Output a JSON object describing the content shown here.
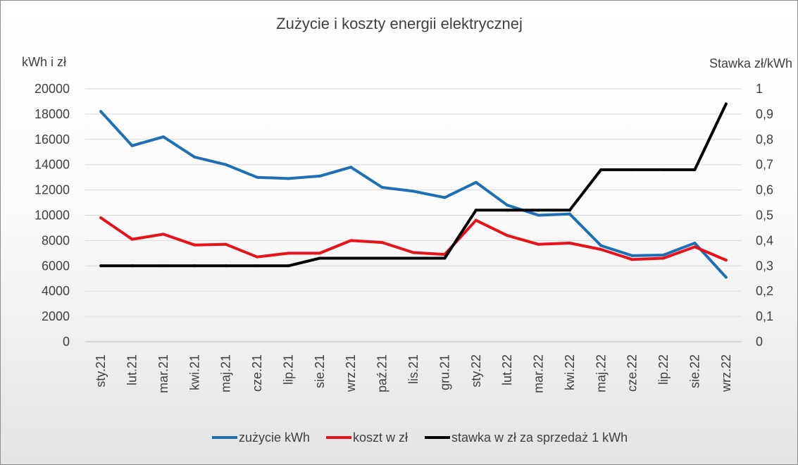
{
  "chart_data": {
    "type": "line",
    "title": "Zużycie i koszty energii elektrycznej",
    "ylabel_left": "kWh i zł",
    "ylabel_right": "Stawka zł/kWh",
    "categories": [
      "sty.21",
      "lut.21",
      "mar.21",
      "kwi.21",
      "maj.21",
      "cze.21",
      "lip.21",
      "sie.21",
      "wrz.21",
      "paź.21",
      "lis.21",
      "gru.21",
      "sty.22",
      "lut.22",
      "mar.22",
      "kwi.22",
      "maj.22",
      "cze.22",
      "lip.22",
      "sie.22",
      "wrz.22"
    ],
    "ylim_left": [
      0,
      20000
    ],
    "ylim_right": [
      0,
      1
    ],
    "y_ticks_left": [
      "0",
      "2000",
      "4000",
      "6000",
      "8000",
      "10000",
      "12000",
      "14000",
      "16000",
      "18000",
      "20000"
    ],
    "y_ticks_right": [
      "0",
      "0,1",
      "0,2",
      "0,3",
      "0,4",
      "0,5",
      "0,6",
      "0,7",
      "0,8",
      "0,9",
      "1"
    ],
    "grid": "horizontal",
    "legend": "bottom",
    "series": [
      {
        "name": "zużycie kWh",
        "axis": "left",
        "color": "#1f6fb4",
        "values": [
          18200,
          15500,
          16200,
          14600,
          14000,
          13000,
          12900,
          13100,
          13800,
          12200,
          11900,
          11400,
          12600,
          10800,
          10000,
          10100,
          7600,
          6800,
          6850,
          7800,
          5100
        ]
      },
      {
        "name": "koszt w zł",
        "axis": "left",
        "color": "#e8121a",
        "values": [
          9800,
          8100,
          8500,
          7650,
          7700,
          6700,
          7000,
          7000,
          8000,
          7850,
          7050,
          6900,
          9600,
          8400,
          7700,
          7800,
          7300,
          6500,
          6600,
          7500,
          6450
        ]
      },
      {
        "name": "stawka w zł za sprzedaż 1 kWh",
        "axis": "right",
        "color": "#000000",
        "values": [
          0.3,
          0.3,
          0.3,
          0.3,
          0.3,
          0.3,
          0.3,
          0.33,
          0.33,
          0.33,
          0.33,
          0.33,
          0.52,
          0.52,
          0.52,
          0.52,
          0.68,
          0.68,
          0.68,
          0.68,
          0.94
        ]
      }
    ]
  }
}
